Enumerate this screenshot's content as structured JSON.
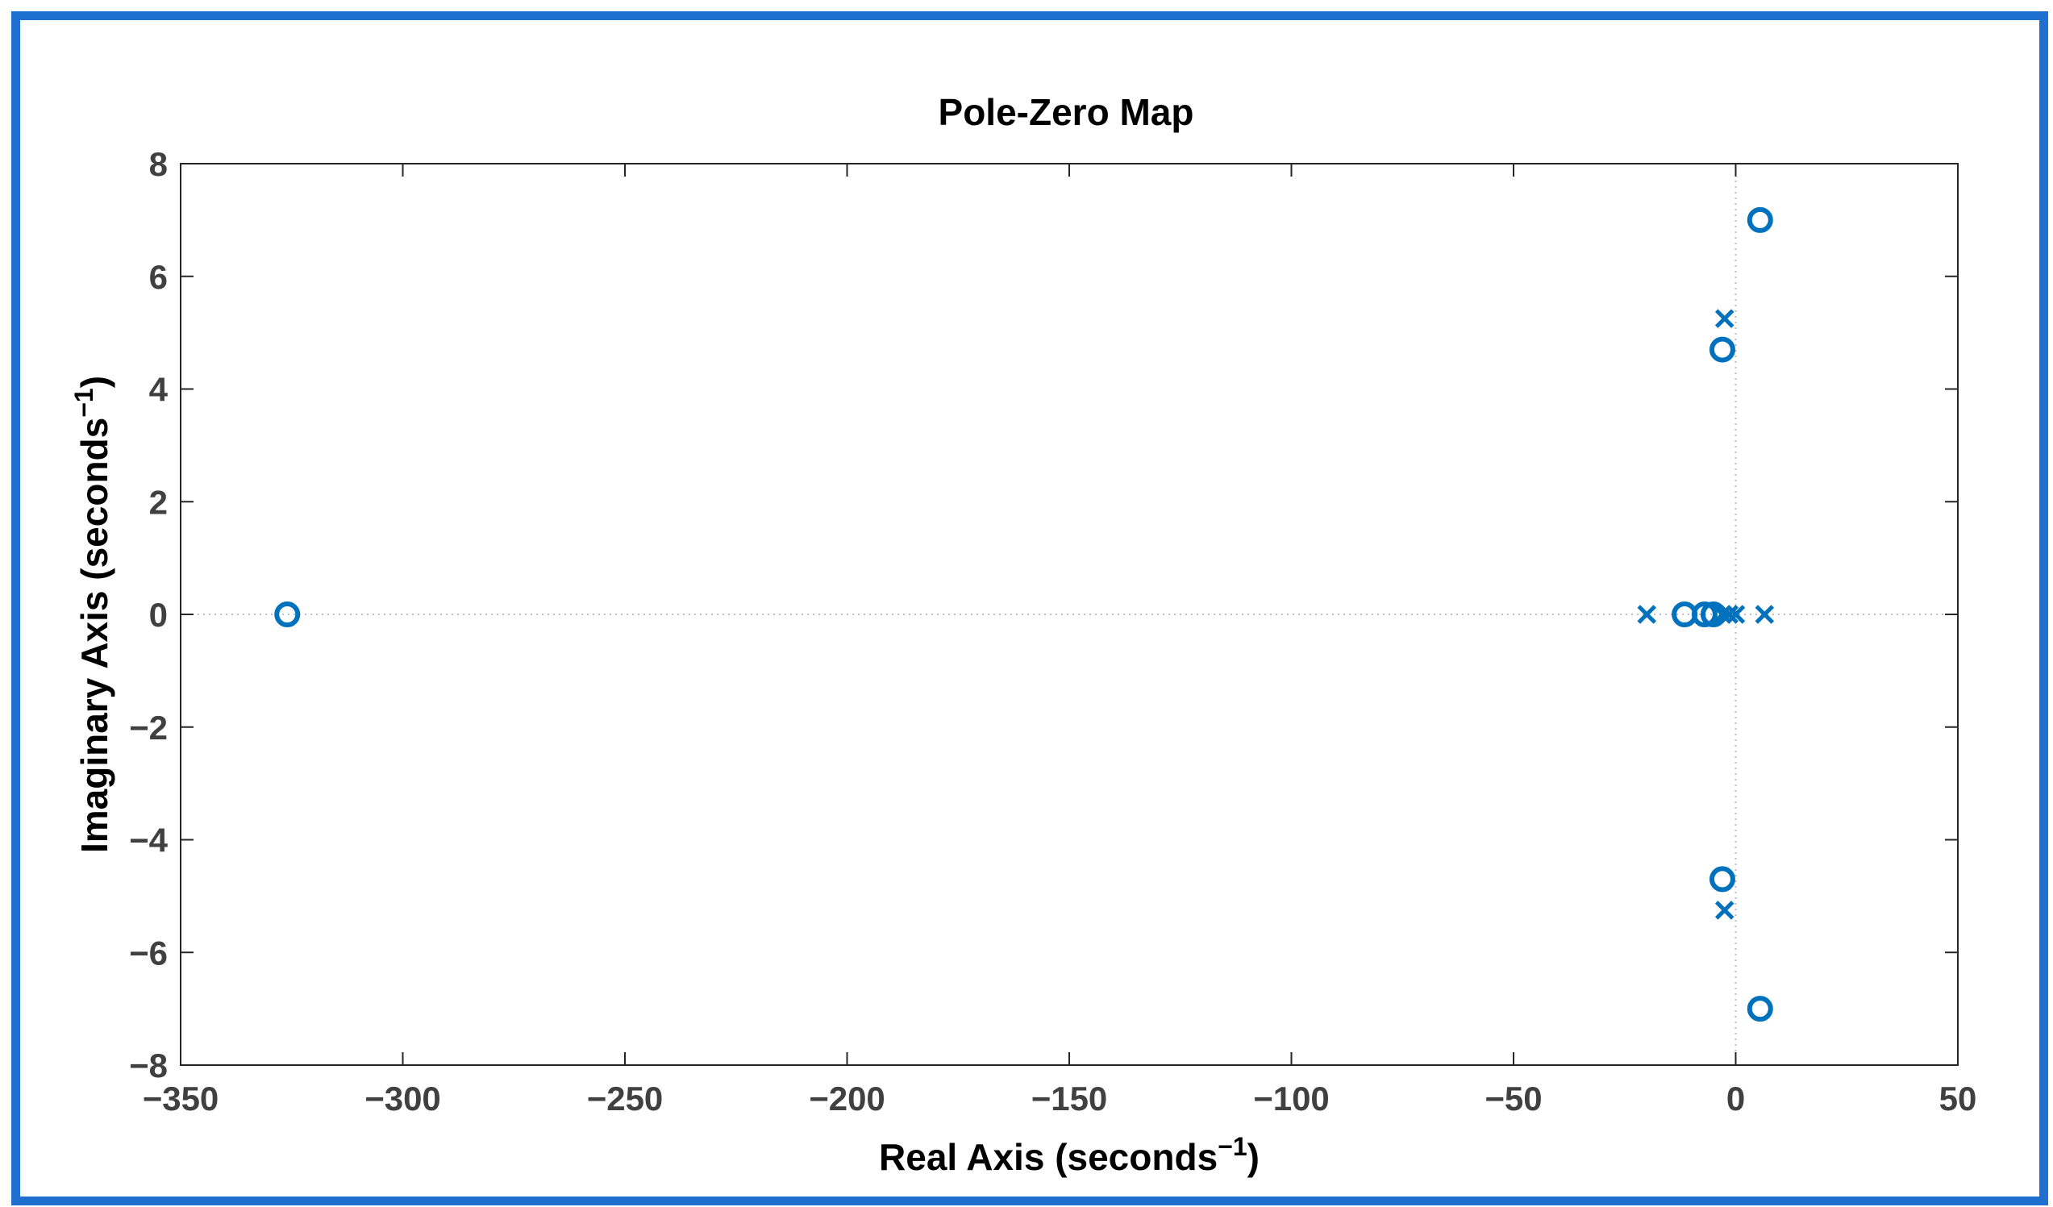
{
  "chart_data": {
    "type": "scatter",
    "title": "Pole-Zero Map",
    "xlabel": "Real Axis (seconds",
    "ylabel": "Imaginary Axis (seconds",
    "xlabel_exponent": "−1",
    "ylabel_exponent": "−1",
    "xlim": [
      -350,
      50
    ],
    "ylim": [
      -8,
      8
    ],
    "xticks": [
      "−350",
      "−300",
      "−250",
      "−200",
      "−150",
      "−100",
      "−50",
      "0",
      "50"
    ],
    "yticks": [
      "−8",
      "−6",
      "−4",
      "−2",
      "0",
      "2",
      "4",
      "6",
      "8"
    ],
    "xtick_values": [
      -350,
      -300,
      -250,
      -200,
      -150,
      -100,
      -50,
      0,
      50
    ],
    "ytick_values": [
      -8,
      -6,
      -4,
      -2,
      0,
      2,
      4,
      6,
      8
    ],
    "grid": false,
    "reference_lines": "dotted lines at x=0 and y=0",
    "marker_color": "#0072BD",
    "series": [
      {
        "marker": "o",
        "points": [
          {
            "x": -326,
            "y": 0
          },
          {
            "x": -11.5,
            "y": 0
          },
          {
            "x": -7,
            "y": 0
          },
          {
            "x": -5,
            "y": 0
          },
          {
            "x": -3,
            "y": 4.7
          },
          {
            "x": -3,
            "y": -4.7
          },
          {
            "x": 5.5,
            "y": 7
          },
          {
            "x": 5.5,
            "y": -7
          }
        ]
      },
      {
        "marker": "x",
        "points": [
          {
            "x": -20,
            "y": 0
          },
          {
            "x": -3,
            "y": 0
          },
          {
            "x": -1.5,
            "y": 0
          },
          {
            "x": 0,
            "y": 0
          },
          {
            "x": 6.5,
            "y": 0
          },
          {
            "x": -2.5,
            "y": 5.25
          },
          {
            "x": -2.5,
            "y": -5.25
          }
        ]
      }
    ]
  }
}
